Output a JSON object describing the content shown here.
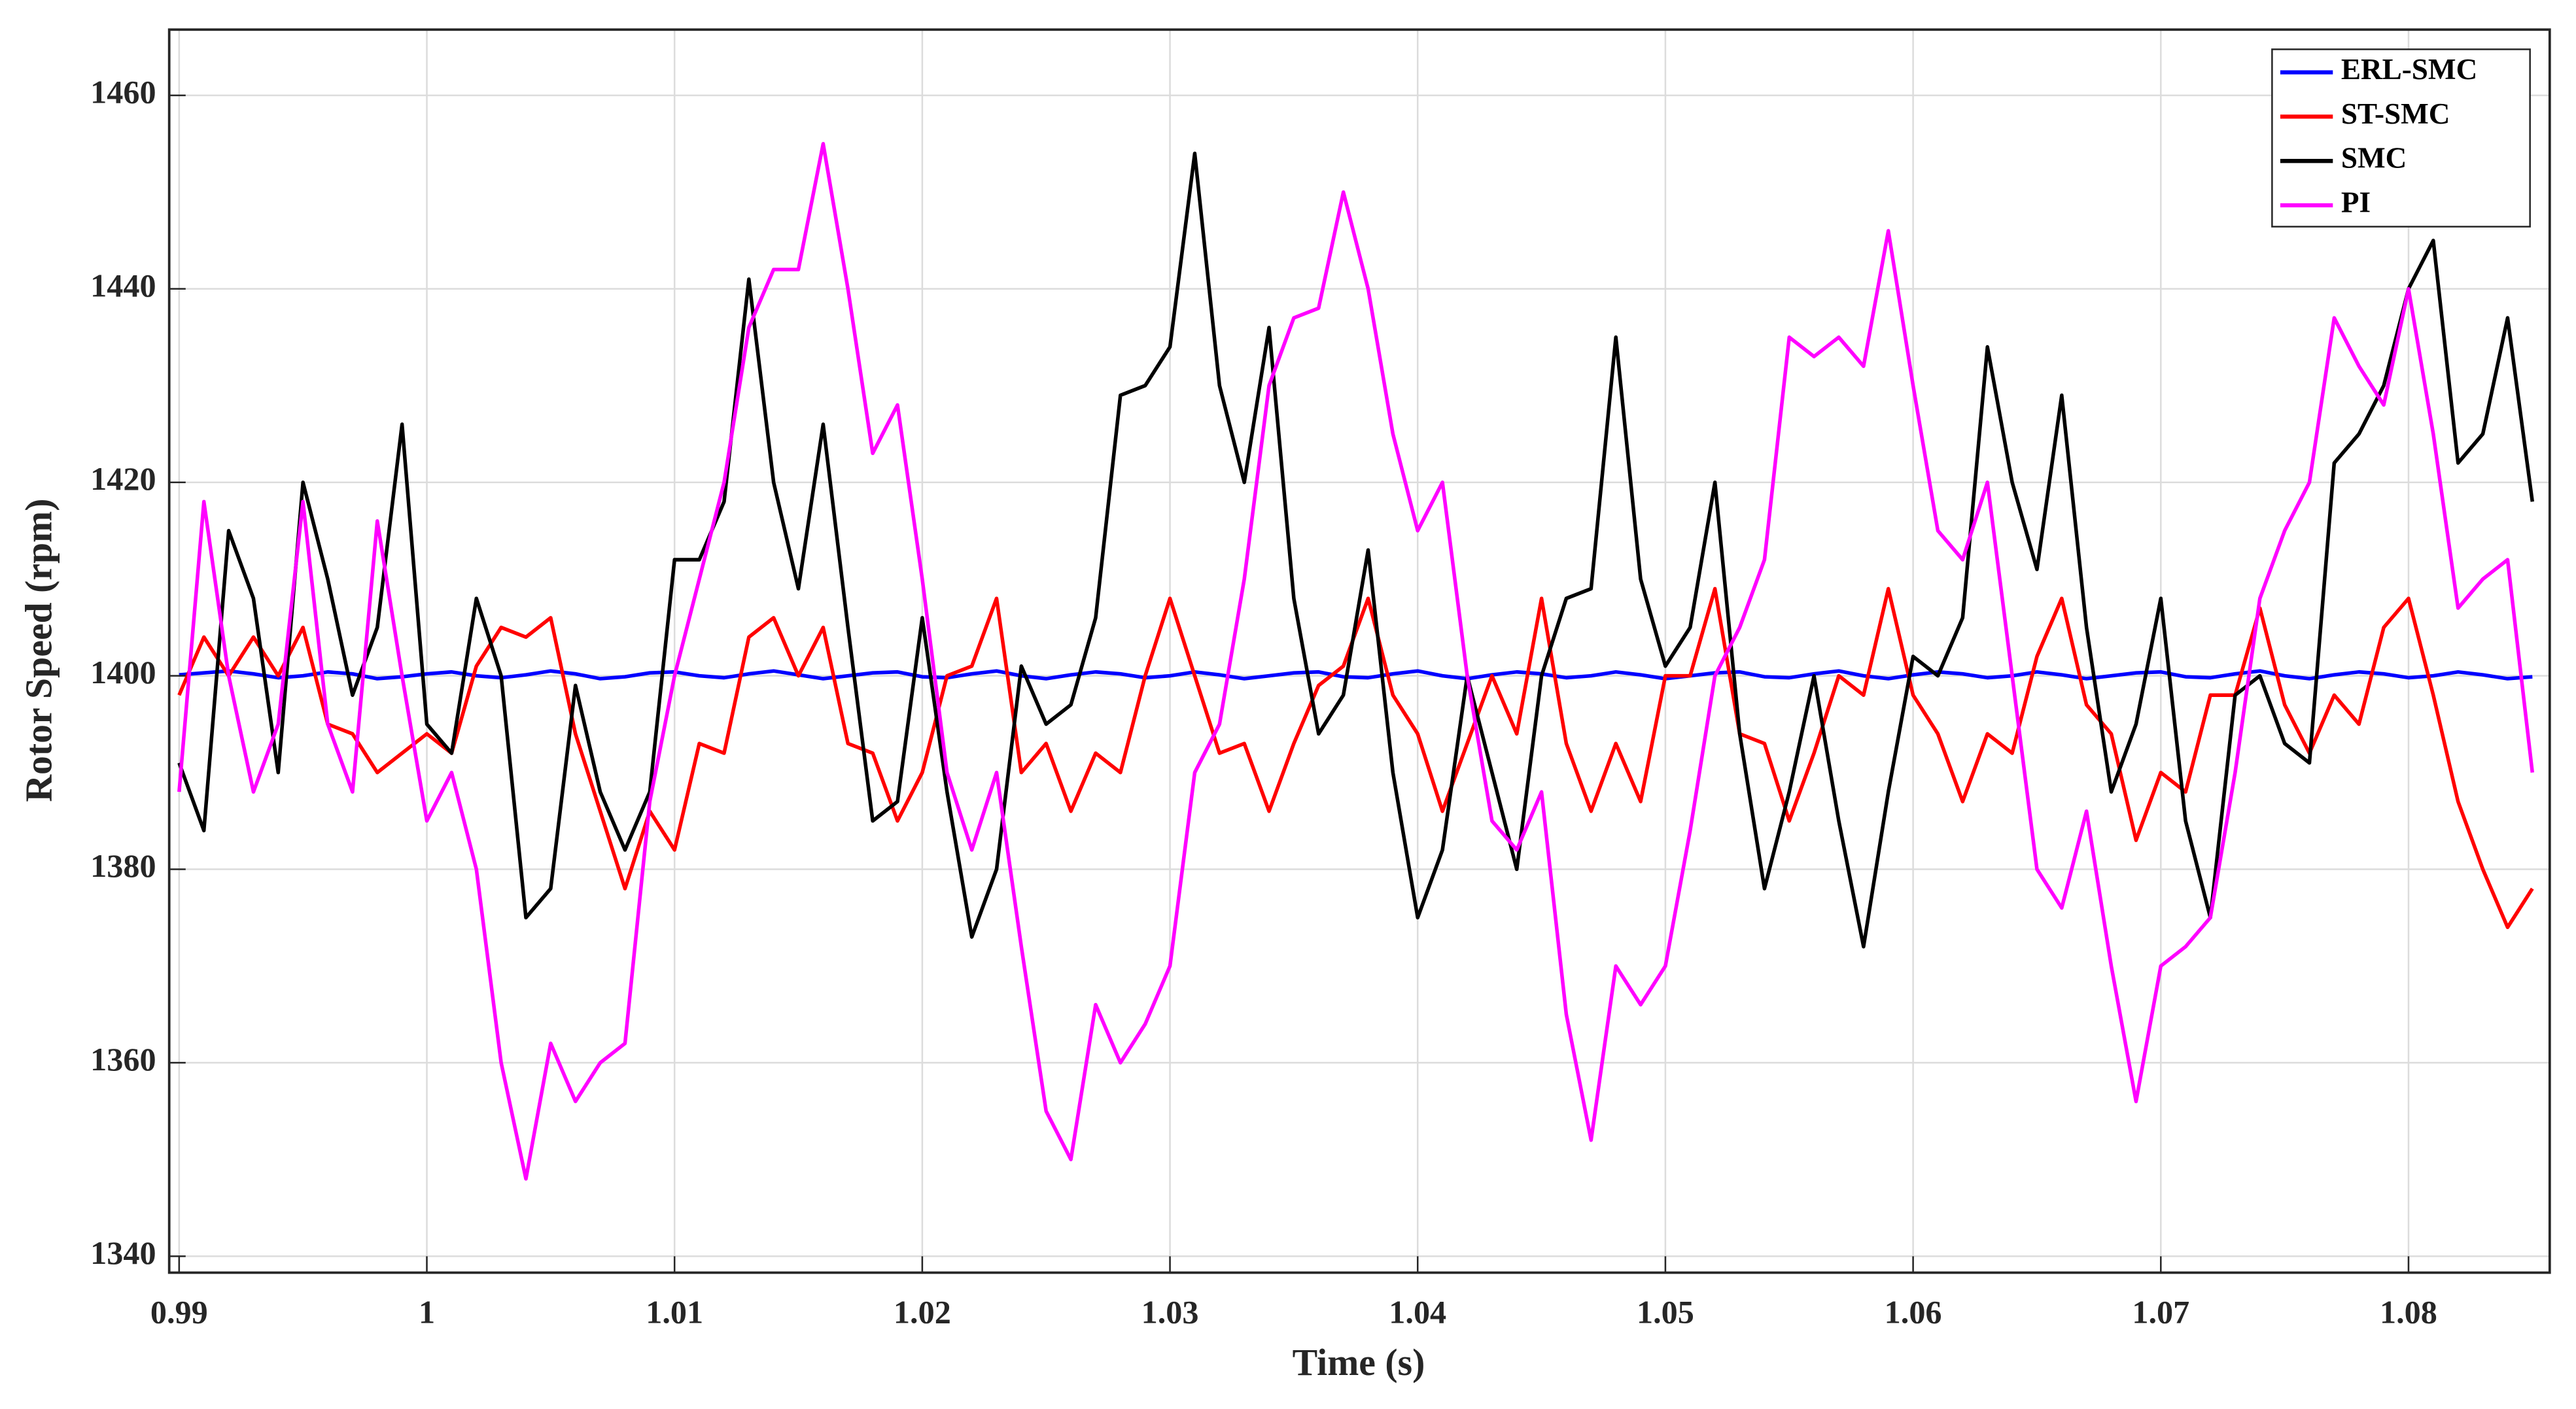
{
  "chart_data": {
    "type": "line",
    "xlabel": "Time (s)",
    "ylabel": "Rotor Speed (rpm)",
    "xlim": [
      0.9896,
      1.0857
    ],
    "ylim": [
      1338.3,
      1466.8
    ],
    "xticks": [
      0.99,
      1,
      1.01,
      1.02,
      1.03,
      1.04,
      1.05,
      1.06,
      1.07,
      1.08
    ],
    "yticks": [
      1340,
      1360,
      1380,
      1400,
      1420,
      1440,
      1460
    ],
    "grid": true,
    "legend": "upper right",
    "x": [
      0.99,
      0.991,
      0.992,
      0.993,
      0.994,
      0.995,
      0.996,
      0.997,
      0.998,
      0.999,
      1.0,
      1.001,
      1.002,
      1.003,
      1.004,
      1.005,
      1.006,
      1.007,
      1.008,
      1.009,
      1.01,
      1.011,
      1.012,
      1.013,
      1.014,
      1.015,
      1.016,
      1.017,
      1.018,
      1.019,
      1.02,
      1.021,
      1.022,
      1.023,
      1.024,
      1.025,
      1.026,
      1.027,
      1.028,
      1.029,
      1.03,
      1.031,
      1.032,
      1.033,
      1.034,
      1.035,
      1.036,
      1.037,
      1.038,
      1.039,
      1.04,
      1.041,
      1.042,
      1.043,
      1.044,
      1.045,
      1.046,
      1.047,
      1.048,
      1.049,
      1.05,
      1.051,
      1.052,
      1.053,
      1.054,
      1.055,
      1.056,
      1.057,
      1.058,
      1.059,
      1.06,
      1.061,
      1.062,
      1.063,
      1.064,
      1.065,
      1.066,
      1.067,
      1.068,
      1.069,
      1.07,
      1.071,
      1.072,
      1.073,
      1.074,
      1.075,
      1.076,
      1.077,
      1.078,
      1.079,
      1.08,
      1.081,
      1.082,
      1.083,
      1.084,
      1.085
    ],
    "series": [
      {
        "name": "ERL-SMC",
        "color": "#0000ff",
        "values": [
          1400.1,
          1400.3,
          1400.5,
          1400.2,
          1399.8,
          1400.0,
          1400.4,
          1400.2,
          1399.7,
          1399.9,
          1400.2,
          1400.4,
          1400.0,
          1399.8,
          1400.1,
          1400.5,
          1400.2,
          1399.7,
          1399.9,
          1400.3,
          1400.4,
          1400.0,
          1399.8,
          1400.2,
          1400.5,
          1400.1,
          1399.7,
          1400.0,
          1400.3,
          1400.4,
          1399.9,
          1399.8,
          1400.2,
          1400.5,
          1400.0,
          1399.7,
          1400.1,
          1400.4,
          1400.2,
          1399.8,
          1400.0,
          1400.4,
          1400.1,
          1399.7,
          1400.0,
          1400.3,
          1400.4,
          1399.9,
          1399.8,
          1400.2,
          1400.5,
          1400.0,
          1399.7,
          1400.1,
          1400.4,
          1400.2,
          1399.8,
          1400.0,
          1400.4,
          1400.1,
          1399.7,
          1400.0,
          1400.3,
          1400.4,
          1399.9,
          1399.8,
          1400.2,
          1400.5,
          1400.0,
          1399.7,
          1400.1,
          1400.4,
          1400.2,
          1399.8,
          1400.0,
          1400.4,
          1400.1,
          1399.7,
          1400.0,
          1400.3,
          1400.4,
          1399.9,
          1399.8,
          1400.2,
          1400.5,
          1400.0,
          1399.7,
          1400.1,
          1400.4,
          1400.2,
          1399.8,
          1400.0,
          1400.4,
          1400.1,
          1399.7,
          1399.9
        ]
      },
      {
        "name": "ST-SMC",
        "color": "#ff0000",
        "values": [
          1398,
          1404,
          1400,
          1404,
          1400,
          1405,
          1395,
          1394,
          1390,
          1392,
          1394,
          1392,
          1401,
          1405,
          1404,
          1406,
          1394,
          1386,
          1378,
          1386,
          1382,
          1393,
          1392,
          1404,
          1406,
          1400,
          1405,
          1393,
          1392,
          1385,
          1390,
          1400,
          1401,
          1408,
          1390,
          1393,
          1386,
          1392,
          1390,
          1400,
          1408,
          1400,
          1392,
          1393,
          1386,
          1393,
          1399,
          1401,
          1408,
          1398,
          1394,
          1386,
          1393,
          1400,
          1394,
          1408,
          1393,
          1386,
          1393,
          1387,
          1400,
          1400,
          1409,
          1394,
          1393,
          1385,
          1392,
          1400,
          1398,
          1409,
          1398,
          1394,
          1387,
          1394,
          1392,
          1402,
          1408,
          1397,
          1394,
          1383,
          1390,
          1388,
          1398,
          1398,
          1407,
          1397,
          1392,
          1398,
          1395,
          1405,
          1408,
          1398,
          1387,
          1380,
          1374,
          1378
        ]
      },
      {
        "name": "SMC",
        "color": "#000000",
        "values": [
          1391,
          1384,
          1415,
          1408,
          1390,
          1420,
          1410,
          1398,
          1405,
          1426,
          1395,
          1392,
          1408,
          1400,
          1375,
          1378,
          1399,
          1388,
          1382,
          1388,
          1412,
          1412,
          1418,
          1441,
          1420,
          1409,
          1426,
          1405,
          1385,
          1387,
          1406,
          1388,
          1373,
          1380,
          1401,
          1395,
          1397,
          1406,
          1429,
          1430,
          1434,
          1454,
          1430,
          1420,
          1436,
          1408,
          1394,
          1398,
          1413,
          1390,
          1375,
          1382,
          1400,
          1390,
          1380,
          1400,
          1408,
          1409,
          1435,
          1410,
          1401,
          1405,
          1420,
          1394,
          1378,
          1388,
          1400,
          1385,
          1372,
          1388,
          1402,
          1400,
          1406,
          1434,
          1420,
          1411,
          1429,
          1405,
          1388,
          1395,
          1408,
          1385,
          1375,
          1398,
          1400,
          1393,
          1391,
          1422,
          1425,
          1430,
          1440,
          1445,
          1422,
          1425,
          1437,
          1418
        ]
      },
      {
        "name": "PI",
        "color": "#ff00ff",
        "values": [
          1388,
          1418,
          1400,
          1388,
          1395,
          1418,
          1395,
          1388,
          1416,
          1400,
          1385,
          1390,
          1380,
          1360,
          1348,
          1362,
          1356,
          1360,
          1362,
          1387,
          1400,
          1410,
          1420,
          1436,
          1442,
          1442,
          1455,
          1440,
          1423,
          1428,
          1410,
          1390,
          1382,
          1390,
          1372,
          1355,
          1350,
          1366,
          1360,
          1364,
          1370,
          1390,
          1395,
          1410,
          1430,
          1437,
          1438,
          1450,
          1440,
          1425,
          1415,
          1420,
          1400,
          1385,
          1382,
          1388,
          1365,
          1352,
          1370,
          1366,
          1370,
          1384,
          1400,
          1405,
          1412,
          1435,
          1433,
          1435,
          1432,
          1446,
          1430,
          1415,
          1412,
          1420,
          1400,
          1380,
          1376,
          1386,
          1370,
          1356,
          1370,
          1372,
          1375,
          1390,
          1408,
          1415,
          1420,
          1437,
          1432,
          1428,
          1440,
          1425,
          1407,
          1410,
          1412,
          1390
        ]
      }
    ]
  }
}
